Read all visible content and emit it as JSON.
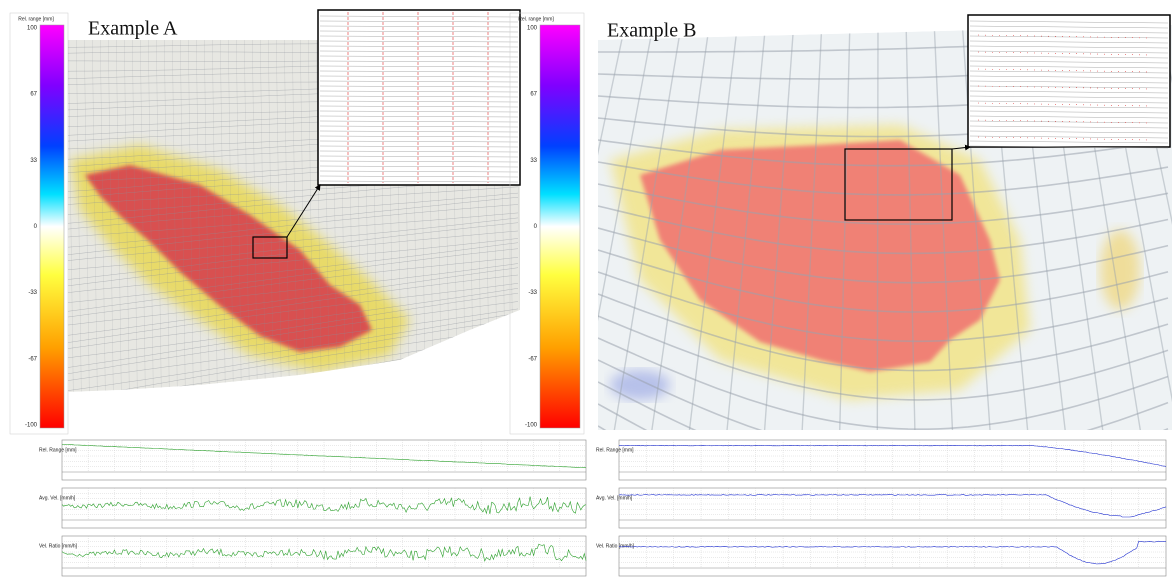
{
  "panels": [
    {
      "title": "Example A",
      "colorbar": {
        "label": "Rel. range [mm]",
        "ticks": [
          "100",
          "67",
          "33",
          "0",
          "-33",
          "-67",
          "-100"
        ]
      },
      "plots": [
        {
          "label": "Rel. Range [mm]"
        },
        {
          "label": "Avg. Vel. [mm/h]"
        },
        {
          "label": "Vel. Ratio [mm/h]"
        }
      ]
    },
    {
      "title": "Example B",
      "colorbar": {
        "label": "Rel. range [mm]",
        "ticks": [
          "100",
          "67",
          "33",
          "0",
          "-33",
          "-67",
          "-100"
        ]
      },
      "plots": [
        {
          "label": "Rel. Range [mm]"
        },
        {
          "label": "Avg. Vel. [mm/h]"
        },
        {
          "label": "Vel. Ratio [mm/h]"
        }
      ]
    }
  ]
}
